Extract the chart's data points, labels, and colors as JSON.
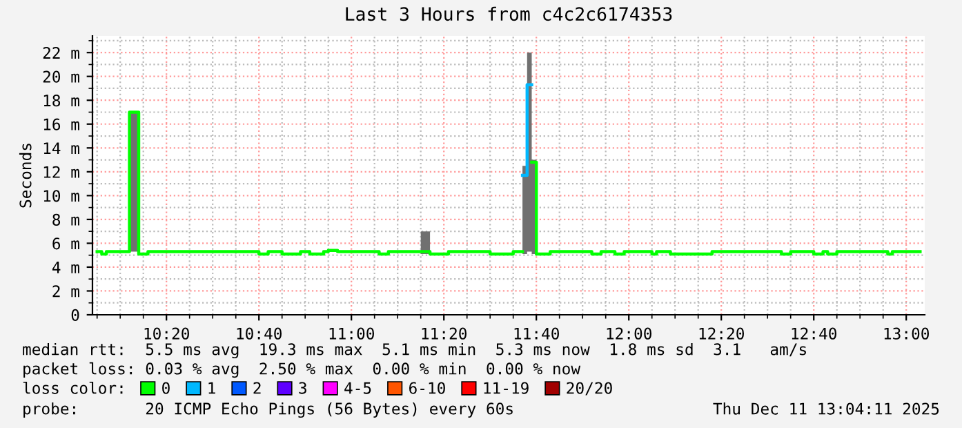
{
  "chart_data": {
    "type": "step",
    "title": "Last 3 Hours from c4c2c6174353",
    "ylabel": "Seconds",
    "legend_title": "loss color:",
    "legend": "bottom",
    "grid": true,
    "x": [
      "2025-12-11T10:05",
      "2025-12-11T10:06",
      "2025-12-11T10:07",
      "2025-12-11T10:12",
      "2025-12-11T10:14",
      "2025-12-11T10:16",
      "2025-12-11T10:40",
      "2025-12-11T10:42",
      "2025-12-11T10:45",
      "2025-12-11T10:49",
      "2025-12-11T10:51",
      "2025-12-11T10:54",
      "2025-12-11T10:55",
      "2025-12-11T10:57",
      "2025-12-11T11:06",
      "2025-12-11T11:08",
      "2025-12-11T11:15",
      "2025-12-11T11:17",
      "2025-12-11T11:21",
      "2025-12-11T11:30",
      "2025-12-11T11:35",
      "2025-12-11T11:37",
      "2025-12-11T11:38",
      "2025-12-11T11:39",
      "2025-12-11T11:40",
      "2025-12-11T11:43",
      "2025-12-11T11:52",
      "2025-12-11T11:54",
      "2025-12-11T11:57",
      "2025-12-11T11:59",
      "2025-12-11T12:05",
      "2025-12-11T12:06",
      "2025-12-11T12:09",
      "2025-12-11T12:18",
      "2025-12-11T12:33",
      "2025-12-11T12:35",
      "2025-12-11T12:40",
      "2025-12-11T12:42",
      "2025-12-11T12:43",
      "2025-12-11T12:45",
      "2025-12-11T12:56",
      "2025-12-11T12:57",
      "2025-12-11T13:03"
    ],
    "series": [
      {
        "name": "0",
        "color": "#00ff00",
        "values": [
          5.3,
          5.1,
          5.3,
          17,
          5.1,
          5.3,
          5.1,
          5.3,
          5.1,
          5.3,
          5.1,
          5.3,
          5.4,
          5.3,
          5.1,
          5.3,
          5.3,
          5.1,
          5.3,
          5.1,
          5.3,
          null,
          null,
          12.8,
          5.1,
          5.3,
          5.1,
          5.3,
          5.1,
          5.3,
          5.1,
          5.3,
          5.1,
          5.3,
          5.1,
          5.3,
          5.1,
          5.3,
          5.1,
          5.3,
          5.1,
          5.3,
          5.3
        ],
        "lower": [
          5.3,
          5.1,
          5.3,
          5.3,
          5.1,
          5.3,
          5.1,
          5.3,
          5.1,
          5.3,
          5.1,
          5.3,
          5.4,
          5.3,
          5.1,
          5.3,
          5.1,
          5.1,
          5.3,
          5.1,
          5.3,
          5.1,
          5.3,
          5.1,
          5.1,
          5.3,
          5.1,
          5.3,
          5.1,
          5.3,
          5.1,
          5.3,
          5.1,
          5.3,
          5.1,
          5.3,
          5.1,
          5.3,
          5.1,
          5.3,
          5.1,
          5.3,
          5.3
        ],
        "upper": [
          5.3,
          5.1,
          5.3,
          17,
          5.1,
          5.3,
          5.1,
          5.3,
          5.1,
          5.3,
          5.1,
          5.3,
          5.4,
          5.3,
          5.1,
          5.3,
          7,
          5.1,
          5.3,
          5.1,
          5.3,
          12.5,
          22,
          13,
          5.1,
          5.3,
          5.1,
          5.3,
          5.1,
          5.3,
          5.1,
          5.3,
          5.1,
          5.3,
          5.1,
          5.3,
          5.1,
          5.3,
          5.1,
          5.3,
          5.1,
          5.3,
          5.3
        ]
      },
      {
        "name": "1",
        "color": "#00b8ff",
        "values": [
          null,
          null,
          null,
          null,
          null,
          null,
          null,
          null,
          null,
          null,
          null,
          null,
          null,
          null,
          null,
          null,
          null,
          null,
          null,
          null,
          null,
          11.7,
          19.3,
          null,
          null,
          null,
          null,
          null,
          null,
          null,
          null,
          null,
          null,
          null,
          null,
          null,
          null,
          null,
          null,
          null,
          null,
          null,
          null
        ]
      },
      {
        "name": "2",
        "color": "#0059ff",
        "values": [
          null,
          null,
          null,
          null,
          null,
          null,
          null,
          null,
          null,
          null,
          null,
          null,
          null,
          null,
          null,
          null,
          null,
          null,
          null,
          null,
          null,
          null,
          null,
          null,
          null,
          null,
          null,
          null,
          null,
          null,
          null,
          null,
          null,
          null,
          null,
          null,
          null,
          null,
          null,
          null,
          null,
          null,
          null
        ]
      },
      {
        "name": "3",
        "color": "#5e00ff",
        "values": [
          null,
          null,
          null,
          null,
          null,
          null,
          null,
          null,
          null,
          null,
          null,
          null,
          null,
          null,
          null,
          null,
          null,
          null,
          null,
          null,
          null,
          null,
          null,
          null,
          null,
          null,
          null,
          null,
          null,
          null,
          null,
          null,
          null,
          null,
          null,
          null,
          null,
          null,
          null,
          null,
          null,
          null,
          null
        ]
      },
      {
        "name": "4-5",
        "color": "#ff00ff",
        "values": [
          null,
          null,
          null,
          null,
          null,
          null,
          null,
          null,
          null,
          null,
          null,
          null,
          null,
          null,
          null,
          null,
          null,
          null,
          null,
          null,
          null,
          null,
          null,
          null,
          null,
          null,
          null,
          null,
          null,
          null,
          null,
          null,
          null,
          null,
          null,
          null,
          null,
          null,
          null,
          null,
          null,
          null,
          null
        ]
      },
      {
        "name": "6-10",
        "color": "#ff5500",
        "values": [
          null,
          null,
          null,
          null,
          null,
          null,
          null,
          null,
          null,
          null,
          null,
          null,
          null,
          null,
          null,
          null,
          null,
          null,
          null,
          null,
          null,
          null,
          null,
          null,
          null,
          null,
          null,
          null,
          null,
          null,
          null,
          null,
          null,
          null,
          null,
          null,
          null,
          null,
          null,
          null,
          null,
          null,
          null
        ]
      },
      {
        "name": "11-19",
        "color": "#ff0000",
        "values": [
          null,
          null,
          null,
          null,
          null,
          null,
          null,
          null,
          null,
          null,
          null,
          null,
          null,
          null,
          null,
          null,
          null,
          null,
          null,
          null,
          null,
          null,
          null,
          null,
          null,
          null,
          null,
          null,
          null,
          null,
          null,
          null,
          null,
          null,
          null,
          null,
          null,
          null,
          null,
          null,
          null,
          null,
          null
        ]
      },
      {
        "name": "20/20",
        "color": "#a10000",
        "values": [
          null,
          null,
          null,
          null,
          null,
          null,
          null,
          null,
          null,
          null,
          null,
          null,
          null,
          null,
          null,
          null,
          null,
          null,
          null,
          null,
          null,
          null,
          null,
          null,
          null,
          null,
          null,
          null,
          null,
          null,
          null,
          null,
          null,
          null,
          null,
          null,
          null,
          null,
          null,
          null,
          null,
          null,
          null
        ]
      }
    ],
    "xlim": [
      "2025-12-11T10:04",
      "2025-12-11T13:04"
    ],
    "xticks": [
      {
        "value": "2025-12-11T10:20",
        "label": "10:20"
      },
      {
        "value": "2025-12-11T10:40",
        "label": "10:40"
      },
      {
        "value": "2025-12-11T11:00",
        "label": "11:00"
      },
      {
        "value": "2025-12-11T11:20",
        "label": "11:20"
      },
      {
        "value": "2025-12-11T11:40",
        "label": "11:40"
      },
      {
        "value": "2025-12-11T12:00",
        "label": "12:00"
      },
      {
        "value": "2025-12-11T12:20",
        "label": "12:20"
      },
      {
        "value": "2025-12-11T12:40",
        "label": "12:40"
      },
      {
        "value": "2025-12-11T13:00",
        "label": "13:00"
      }
    ],
    "ylim": [
      0,
      23.4
    ],
    "yticks": [
      0,
      {
        "value": 2,
        "label": "2 m"
      },
      {
        "value": 4,
        "label": "4 m"
      },
      {
        "value": 6,
        "label": "6 m"
      },
      {
        "value": 8,
        "label": "8 m"
      },
      {
        "value": 10,
        "label": "10 m"
      },
      {
        "value": 12,
        "label": "12 m"
      },
      {
        "value": 14,
        "label": "14 m"
      },
      {
        "value": 16,
        "label": "16 m"
      },
      {
        "value": 18,
        "label": "18 m"
      },
      {
        "value": 20,
        "label": "20 m"
      },
      {
        "value": 22,
        "label": "22 m"
      }
    ],
    "annotations": [
      "median rtt:  5.5 ms avg  19.3 ms max  5.1 ms min  5.3 ms now  1.8 ms sd  3.1   am/s",
      "packet loss: 0.03 % avg  2.50 % max  0.00 % min  0.00 % now",
      "probe:       20 ICMP Echo Pings (56 Bytes) every 60s",
      "Thu Dec 11 13:04:11 2025"
    ]
  }
}
